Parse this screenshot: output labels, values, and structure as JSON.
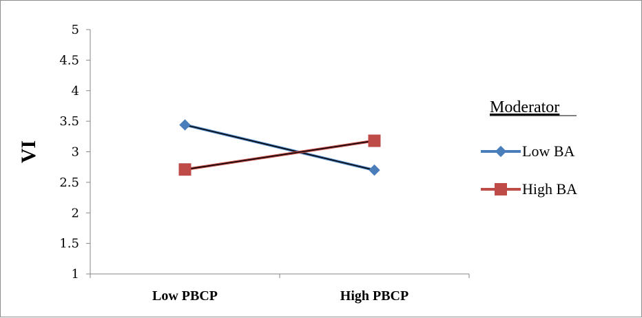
{
  "chart_data": {
    "type": "line",
    "categories": [
      "Low PBCP",
      "High PBCP"
    ],
    "ylabel": "VI",
    "xlabel": "",
    "ylim": [
      1,
      5
    ],
    "yticks": [
      "1",
      "1.5",
      "2",
      "2.5",
      "3",
      "3.5",
      "4",
      "4.5",
      "5"
    ],
    "grid": false,
    "legend": {
      "title": "Moderator",
      "placement": "right"
    },
    "series": [
      {
        "name": "Low BA",
        "values": [
          3.44,
          2.7
        ],
        "color": "#4a7ebb",
        "marker": "diamond"
      },
      {
        "name": "High BA",
        "values": [
          2.71,
          3.18
        ],
        "color": "#be4b48",
        "marker": "square"
      }
    ],
    "trendline_color": "#000000"
  }
}
